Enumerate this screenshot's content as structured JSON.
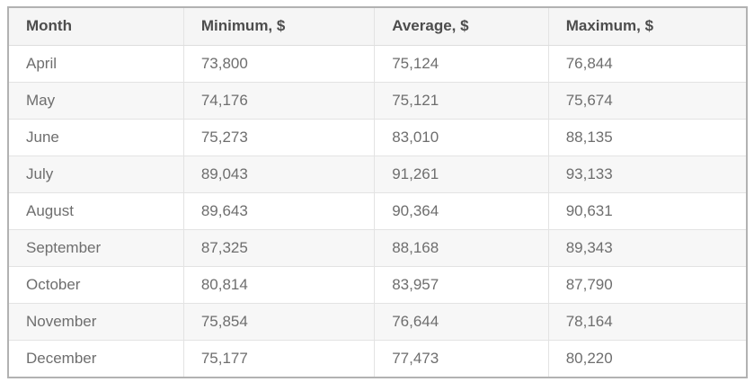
{
  "table": {
    "headers": [
      "Month",
      "Minimum, $",
      "Average, $",
      "Maximum, $"
    ],
    "rows": [
      [
        "April",
        "73,800",
        "75,124",
        "76,844"
      ],
      [
        "May",
        "74,176",
        "75,121",
        "75,674"
      ],
      [
        "June",
        "75,273",
        "83,010",
        "88,135"
      ],
      [
        "July",
        "89,043",
        "91,261",
        "93,133"
      ],
      [
        "August",
        "89,643",
        "90,364",
        "90,631"
      ],
      [
        "September",
        "87,325",
        "88,168",
        "89,343"
      ],
      [
        "October",
        "80,814",
        "83,957",
        "87,790"
      ],
      [
        "November",
        "75,854",
        "76,644",
        "78,164"
      ],
      [
        "December",
        "75,177",
        "77,473",
        "80,220"
      ]
    ]
  },
  "colors": {
    "outer_border": "#b2b2b2",
    "header_bg": "#f5f5f5",
    "header_text": "#4d4d4d",
    "body_text": "#6e6e6e",
    "alt_row_bg": "#f7f7f7",
    "grid_line": "#e3e3e3"
  },
  "chart_data": {
    "type": "table",
    "title": "",
    "columns": [
      "Month",
      "Minimum, $",
      "Average, $",
      "Maximum, $"
    ],
    "categories": [
      "April",
      "May",
      "June",
      "July",
      "August",
      "September",
      "October",
      "November",
      "December"
    ],
    "series": [
      {
        "name": "Minimum, $",
        "values": [
          73800,
          74176,
          75273,
          89043,
          89643,
          87325,
          80814,
          75854,
          75177
        ]
      },
      {
        "name": "Average, $",
        "values": [
          75124,
          75121,
          83010,
          91261,
          90364,
          88168,
          83957,
          76644,
          77473
        ]
      },
      {
        "name": "Maximum, $",
        "values": [
          76844,
          75674,
          88135,
          93133,
          90631,
          89343,
          87790,
          78164,
          80220
        ]
      }
    ]
  }
}
